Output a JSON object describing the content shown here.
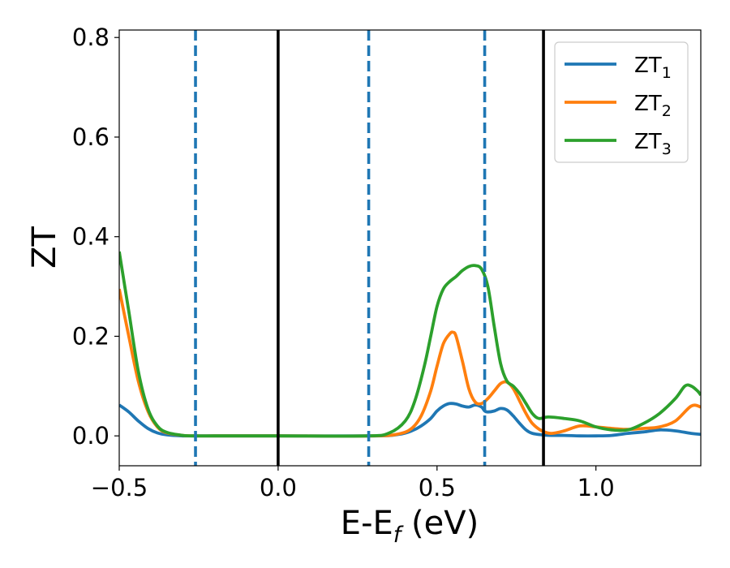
{
  "chart_data": {
    "type": "line",
    "xlabel_main": "E-E",
    "xlabel_sub": "f",
    "xlabel_unit": " (eV)",
    "ylabel": "ZT",
    "xlim": [
      -0.5,
      1.33
    ],
    "ylim": [
      -0.06,
      0.815
    ],
    "xticks": [
      -0.5,
      0.0,
      0.5,
      1.0
    ],
    "xtick_labels": [
      "−0.5",
      "0.0",
      "0.5",
      "1.0"
    ],
    "yticks": [
      0.0,
      0.2,
      0.4,
      0.6,
      0.8
    ],
    "ytick_labels": [
      "0.0",
      "0.2",
      "0.4",
      "0.6",
      "0.8"
    ],
    "vlines_solid": [
      0.0,
      0.835
    ],
    "vlines_dashed": [
      -0.26,
      0.285,
      0.65
    ],
    "legend_position": "top-right",
    "grid": false,
    "series": [
      {
        "name": "ZT",
        "subscript": "1",
        "color": "#1f77b4",
        "x": [
          -0.5,
          -0.47,
          -0.44,
          -0.41,
          -0.38,
          -0.35,
          -0.3,
          -0.26,
          -0.2,
          0.0,
          0.3,
          0.38,
          0.42,
          0.45,
          0.48,
          0.5,
          0.52,
          0.54,
          0.56,
          0.58,
          0.6,
          0.62,
          0.64,
          0.65,
          0.66,
          0.68,
          0.7,
          0.72,
          0.74,
          0.76,
          0.78,
          0.8,
          0.83,
          0.86,
          0.9,
          0.95,
          1.0,
          1.05,
          1.1,
          1.15,
          1.2,
          1.25,
          1.3,
          1.33
        ],
        "y": [
          0.062,
          0.048,
          0.03,
          0.015,
          0.006,
          0.002,
          0.0,
          0.0,
          0.0,
          0.0,
          0.0,
          0.003,
          0.01,
          0.02,
          0.035,
          0.05,
          0.06,
          0.065,
          0.064,
          0.06,
          0.058,
          0.062,
          0.058,
          0.05,
          0.048,
          0.05,
          0.055,
          0.052,
          0.04,
          0.025,
          0.012,
          0.005,
          0.002,
          0.001,
          0.001,
          0.0,
          0.0,
          0.001,
          0.005,
          0.008,
          0.012,
          0.01,
          0.005,
          0.003
        ]
      },
      {
        "name": "ZT",
        "subscript": "2",
        "color": "#ff7f0e",
        "x": [
          -0.5,
          -0.47,
          -0.44,
          -0.41,
          -0.38,
          -0.35,
          -0.3,
          -0.26,
          -0.2,
          0.0,
          0.3,
          0.38,
          0.42,
          0.45,
          0.48,
          0.5,
          0.52,
          0.54,
          0.55,
          0.56,
          0.58,
          0.6,
          0.62,
          0.64,
          0.66,
          0.68,
          0.7,
          0.72,
          0.74,
          0.76,
          0.78,
          0.8,
          0.83,
          0.86,
          0.9,
          0.95,
          1.0,
          1.05,
          1.1,
          1.15,
          1.2,
          1.25,
          1.3,
          1.33
        ],
        "y": [
          0.295,
          0.2,
          0.11,
          0.05,
          0.018,
          0.006,
          0.001,
          0.0,
          0.0,
          0.0,
          0.0,
          0.004,
          0.015,
          0.04,
          0.09,
          0.14,
          0.185,
          0.205,
          0.208,
          0.2,
          0.15,
          0.095,
          0.068,
          0.065,
          0.075,
          0.09,
          0.105,
          0.108,
          0.095,
          0.07,
          0.045,
          0.025,
          0.01,
          0.005,
          0.01,
          0.02,
          0.018,
          0.015,
          0.013,
          0.015,
          0.018,
          0.03,
          0.06,
          0.058
        ]
      },
      {
        "name": "ZT",
        "subscript": "3",
        "color": "#2ca02c",
        "x": [
          -0.5,
          -0.47,
          -0.44,
          -0.41,
          -0.38,
          -0.35,
          -0.3,
          -0.26,
          -0.2,
          0.0,
          0.28,
          0.35,
          0.4,
          0.43,
          0.46,
          0.48,
          0.5,
          0.52,
          0.54,
          0.56,
          0.58,
          0.6,
          0.62,
          0.64,
          0.66,
          0.68,
          0.7,
          0.72,
          0.74,
          0.76,
          0.78,
          0.8,
          0.82,
          0.85,
          0.9,
          0.95,
          1.0,
          1.05,
          1.1,
          1.15,
          1.2,
          1.25,
          1.28,
          1.3,
          1.32,
          1.33
        ],
        "y": [
          0.37,
          0.25,
          0.13,
          0.055,
          0.02,
          0.007,
          0.001,
          0.0,
          0.0,
          0.0,
          0.0,
          0.006,
          0.03,
          0.07,
          0.14,
          0.2,
          0.26,
          0.295,
          0.31,
          0.32,
          0.332,
          0.34,
          0.342,
          0.335,
          0.3,
          0.22,
          0.145,
          0.11,
          0.1,
          0.085,
          0.065,
          0.045,
          0.035,
          0.038,
          0.035,
          0.03,
          0.018,
          0.012,
          0.012,
          0.025,
          0.045,
          0.075,
          0.1,
          0.1,
          0.09,
          0.082
        ]
      }
    ]
  }
}
